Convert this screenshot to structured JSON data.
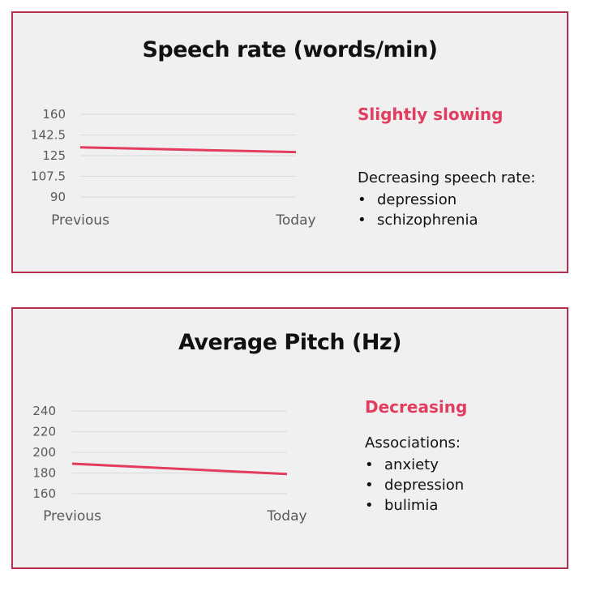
{
  "chart_data": [
    {
      "type": "line",
      "title": "Speech rate (words/min)",
      "categories": [
        "Previous",
        "Today"
      ],
      "y_ticks": [
        "160",
        "142.5",
        "125",
        "107.5",
        "90"
      ],
      "ylim": [
        90,
        160
      ],
      "grid": true,
      "series": [
        {
          "values": [
            132,
            128
          ]
        }
      ],
      "color": "#e23c5f",
      "trend_label": "Slightly slowing",
      "associations_heading": "Decreasing speech rate:",
      "associations": [
        "depression",
        "schizophrenia"
      ]
    },
    {
      "type": "line",
      "title": "Average Pitch (Hz)",
      "categories": [
        "Previous",
        "Today"
      ],
      "y_ticks": [
        "240",
        "220",
        "200",
        "180",
        "160"
      ],
      "ylim": [
        160,
        240
      ],
      "grid": true,
      "series": [
        {
          "values": [
            189,
            179
          ]
        }
      ],
      "color": "#e23c5f",
      "trend_label": "Decreasing",
      "associations_heading": "Associations:",
      "associations": [
        "anxiety",
        "depression",
        "bulimia"
      ]
    }
  ]
}
